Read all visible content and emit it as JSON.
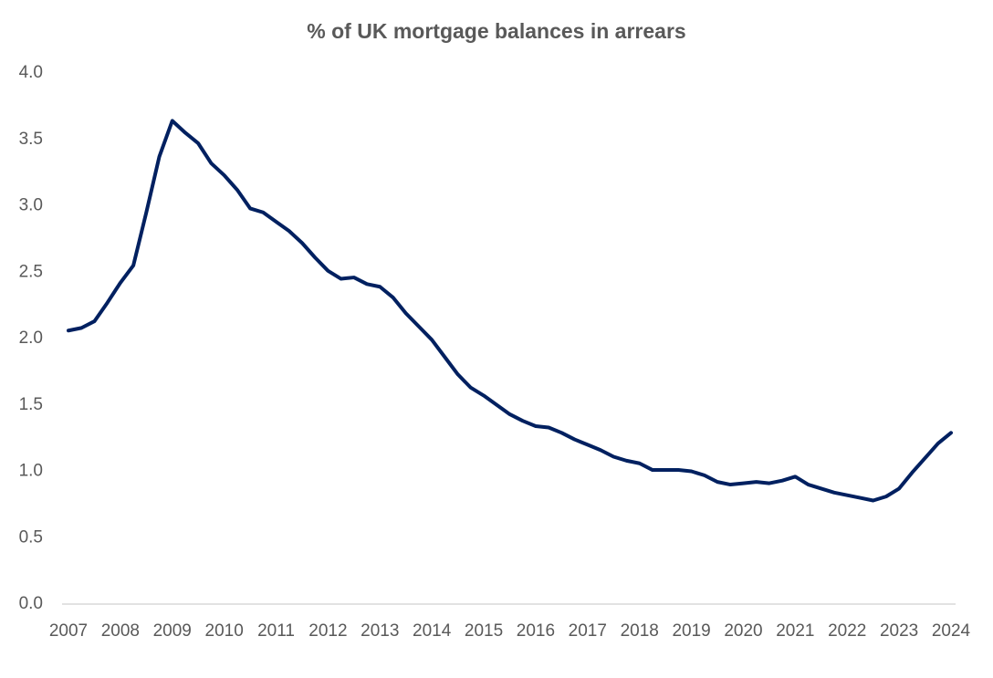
{
  "chart_data": {
    "type": "line",
    "title": "% of UK mortgage balances in arrears",
    "x": [
      2007,
      2007.25,
      2007.5,
      2007.75,
      2008,
      2008.25,
      2008.5,
      2008.75,
      2009,
      2009.25,
      2009.5,
      2009.75,
      2010,
      2010.25,
      2010.5,
      2010.75,
      2011,
      2011.25,
      2011.5,
      2011.75,
      2012,
      2012.25,
      2012.5,
      2012.75,
      2013,
      2013.25,
      2013.5,
      2013.75,
      2014,
      2014.25,
      2014.5,
      2014.75,
      2015,
      2015.25,
      2015.5,
      2015.75,
      2016,
      2016.25,
      2016.5,
      2016.75,
      2017,
      2017.25,
      2017.5,
      2017.75,
      2018,
      2018.25,
      2018.5,
      2018.75,
      2019,
      2019.25,
      2019.5,
      2019.75,
      2020,
      2020.25,
      2020.5,
      2020.75,
      2021,
      2021.25,
      2021.5,
      2021.75,
      2022,
      2022.25,
      2022.5,
      2022.75,
      2023,
      2023.25,
      2023.5,
      2023.75,
      2024
    ],
    "values": [
      2.06,
      2.08,
      2.13,
      2.27,
      2.42,
      2.55,
      2.95,
      3.37,
      3.64,
      3.55,
      3.47,
      3.32,
      3.23,
      3.12,
      2.98,
      2.95,
      2.88,
      2.81,
      2.72,
      2.61,
      2.51,
      2.45,
      2.46,
      2.41,
      2.39,
      2.31,
      2.19,
      2.09,
      1.99,
      1.86,
      1.73,
      1.63,
      1.57,
      1.5,
      1.43,
      1.38,
      1.34,
      1.33,
      1.29,
      1.24,
      1.2,
      1.16,
      1.11,
      1.08,
      1.06,
      1.01,
      1.01,
      1.01,
      1.0,
      0.97,
      0.92,
      0.9,
      0.91,
      0.92,
      0.91,
      0.93,
      0.96,
      0.9,
      0.87,
      0.84,
      0.82,
      0.8,
      0.78,
      0.81,
      0.87,
      0.99,
      1.1,
      1.21,
      1.29
    ],
    "color": "#002060",
    "xlim": [
      2007,
      2024
    ],
    "xticks": [
      2007,
      2008,
      2009,
      2010,
      2011,
      2012,
      2013,
      2014,
      2015,
      2016,
      2017,
      2018,
      2019,
      2020,
      2021,
      2022,
      2023,
      2024
    ],
    "ylim": [
      0,
      4
    ],
    "yticks": [
      {
        "value": 0,
        "label": "0.0"
      },
      0.5,
      {
        "value": 1,
        "label": "1.0"
      },
      1.5,
      {
        "value": 2,
        "label": "2.0"
      },
      2.5,
      {
        "value": 3,
        "label": "3.0"
      },
      3.5,
      {
        "value": 4,
        "label": "4.0"
      }
    ],
    "grid": false
  }
}
